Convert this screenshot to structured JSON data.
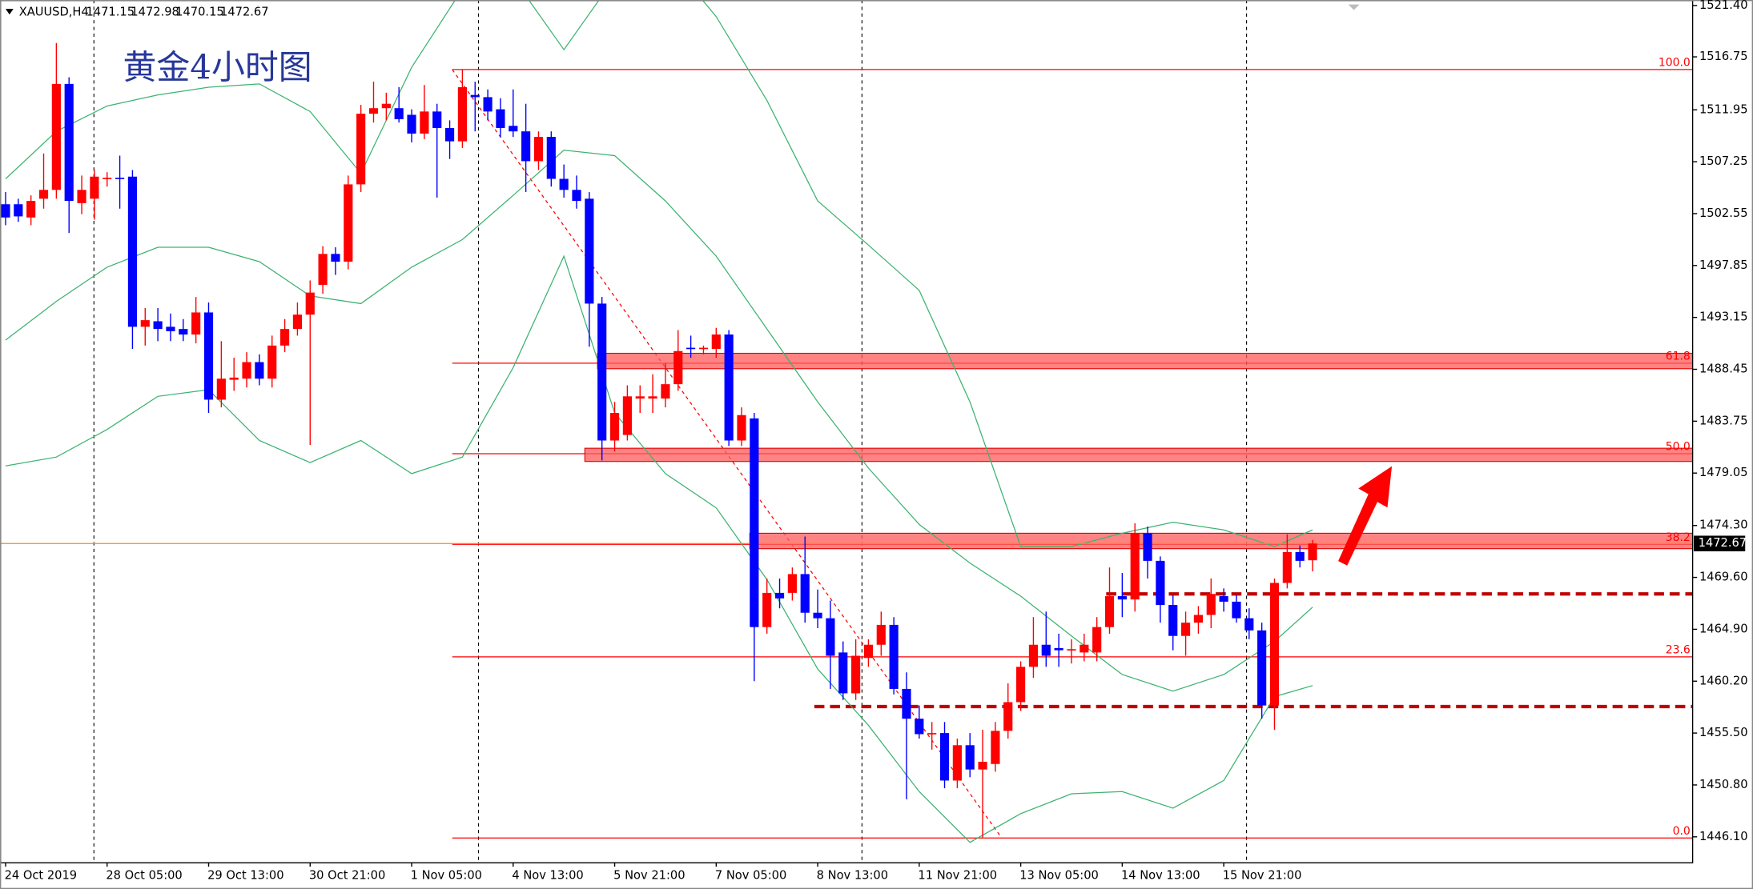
{
  "chart_data": {
    "type": "candlestick",
    "symbol": "XAUUSD,H4",
    "annotation": "黄金4小时图",
    "up_color": "#ff0000",
    "down_color": "#0000ff",
    "categories": [
      "24 Oct 2019",
      null,
      null,
      null,
      null,
      null,
      null,
      null,
      "28 Oct 05:00",
      null,
      null,
      null,
      null,
      null,
      null,
      null,
      "29 Oct 13:00",
      null,
      null,
      null,
      null,
      null,
      null,
      null,
      "30 Oct 21:00",
      null,
      null,
      null,
      null,
      null,
      null,
      null,
      "1 Nov 05:00",
      null,
      null,
      null,
      null,
      null,
      null,
      null,
      "4 Nov 13:00",
      null,
      null,
      null,
      null,
      null,
      null,
      null,
      "5 Nov 21:00",
      null,
      null,
      null,
      null,
      null,
      null,
      null,
      "7 Nov 05:00",
      null,
      null,
      null,
      null,
      null,
      null,
      null,
      "8 Nov 13:00",
      null,
      null,
      null,
      null,
      null,
      null,
      null,
      "11 Nov 21:00",
      null,
      null,
      null,
      null,
      null,
      null,
      null,
      "13 Nov 05:00",
      null,
      null,
      null,
      null,
      null,
      null,
      null,
      "14 Nov 13:00",
      null,
      null,
      null,
      null,
      null,
      null,
      null,
      "15 Nov 21:00",
      null,
      null,
      null,
      null,
      null,
      null,
      null
    ],
    "open": [
      1503.4,
      1503.4,
      1502.2,
      1503.9,
      1504.7,
      1514.3,
      1503.5,
      1503.9,
      1505.7,
      1505.8,
      1505.9,
      1492.3,
      1492.8,
      1492.3,
      1492.1,
      1491.6,
      1493.6,
      1485.7,
      1487.5,
      1487.6,
      1489.1,
      1487.6,
      1490.6,
      1492.1,
      1493.4,
      1496.1,
      1498.9,
      1498.2,
      1505.2,
      1511.6,
      1512.1,
      1512.1,
      1511.5,
      1509.8,
      1511.8,
      1510.3,
      1509.1,
      1513.3,
      1513.1,
      1512.0,
      1510.5,
      1510.0,
      1507.3,
      1509.5,
      1505.7,
      1504.7,
      1503.9,
      1494.4,
      1482.0,
      1482.5,
      1485.8,
      1485.8,
      1485.8,
      1487.1,
      1490.4,
      1490.3,
      1490.3,
      1491.6,
      1482.0,
      1484.0,
      1465.1,
      1468.2,
      1468.2,
      1469.9,
      1466.4,
      1465.9,
      1462.8,
      1459.1,
      1462.3,
      1463.5,
      1465.3,
      1459.5,
      1456.8,
      1455.4,
      1455.5,
      1451.2,
      1454.4,
      1452.2,
      1452.7,
      1455.7,
      1458.3,
      1461.5,
      1463.5,
      1463.2,
      1463.0,
      1462.8,
      1462.8,
      1465.1,
      1467.9,
      1467.6,
      1473.6,
      1471.1,
      1467.1,
      1464.3,
      1465.5,
      1466.2,
      1467.9,
      1467.4,
      1465.9,
      1464.8,
      1458.0,
      1469.1,
      1471.9,
      1471.15
    ],
    "high": [
      1504.5,
      1503.9,
      1504.2,
      1508.0,
      1518.0,
      1514.9,
      1506.0,
      1506.5,
      1506.3,
      1507.8,
      1506.5,
      1494.0,
      1494.0,
      1493.5,
      1493.0,
      1495.0,
      1494.5,
      1491.0,
      1489.5,
      1490.0,
      1489.8,
      1491.5,
      1493.0,
      1494.5,
      1496.5,
      1499.6,
      1499.5,
      1506.0,
      1512.4,
      1514.5,
      1513.5,
      1514.0,
      1512.0,
      1514.2,
      1512.5,
      1511.0,
      1515.6,
      1514.5,
      1513.8,
      1513.0,
      1513.8,
      1512.5,
      1510.0,
      1510.0,
      1507.0,
      1506.0,
      1504.5,
      1495.0,
      1485.5,
      1487.0,
      1487.0,
      1488.0,
      1489.0,
      1492.0,
      1491.5,
      1490.6,
      1492.2,
      1492.0,
      1485.0,
      1484.5,
      1469.5,
      1469.5,
      1470.5,
      1473.3,
      1468.5,
      1467.5,
      1463.8,
      1464.0,
      1464.0,
      1466.5,
      1466.0,
      1461.0,
      1458.0,
      1456.5,
      1456.5,
      1455.0,
      1455.5,
      1455.8,
      1456.5,
      1460.0,
      1462.0,
      1466.0,
      1466.5,
      1464.5,
      1464.0,
      1464.5,
      1466.0,
      1470.5,
      1470.0,
      1474.5,
      1474.2,
      1471.5,
      1468.0,
      1466.5,
      1467.0,
      1469.5,
      1468.6,
      1468.0,
      1466.8,
      1465.5,
      1469.5,
      1473.5,
      1472.5,
      1472.98
    ],
    "low": [
      1501.5,
      1501.8,
      1501.5,
      1503.0,
      1503.9,
      1500.8,
      1502.5,
      1502.0,
      1505.0,
      1503.0,
      1490.3,
      1490.6,
      1491.0,
      1491.0,
      1491.0,
      1490.8,
      1484.5,
      1485.0,
      1486.5,
      1486.8,
      1487.0,
      1486.8,
      1490.0,
      1491.5,
      1481.6,
      1495.3,
      1497.0,
      1497.5,
      1504.5,
      1510.8,
      1511.0,
      1510.8,
      1509.0,
      1509.3,
      1504.0,
      1507.5,
      1508.5,
      1510.0,
      1511.0,
      1509.5,
      1509.5,
      1504.5,
      1506.5,
      1505.0,
      1504.0,
      1503.0,
      1490.5,
      1480.2,
      1481.0,
      1482.0,
      1484.5,
      1484.5,
      1485.0,
      1486.5,
      1489.5,
      1489.8,
      1489.5,
      1481.5,
      1481.5,
      1460.2,
      1464.5,
      1466.8,
      1467.5,
      1465.5,
      1465.0,
      1459.5,
      1458.5,
      1458.5,
      1461.5,
      1462.5,
      1459.0,
      1449.5,
      1455.0,
      1454.0,
      1450.5,
      1450.5,
      1451.5,
      1446.0,
      1452.0,
      1455.0,
      1457.5,
      1460.5,
      1461.5,
      1461.5,
      1461.8,
      1462.0,
      1462.0,
      1464.5,
      1466.0,
      1466.5,
      1469.5,
      1465.5,
      1463.0,
      1462.5,
      1464.5,
      1465.0,
      1466.5,
      1465.5,
      1464.0,
      1456.8,
      1455.8,
      1468.6,
      1470.5,
      1470.15
    ],
    "close": [
      1502.2,
      1502.3,
      1503.7,
      1504.7,
      1514.3,
      1503.7,
      1504.7,
      1505.9,
      1505.8,
      1505.7,
      1492.3,
      1492.9,
      1492.1,
      1491.9,
      1491.6,
      1493.6,
      1485.7,
      1487.6,
      1487.7,
      1489.1,
      1487.6,
      1490.6,
      1492.1,
      1493.4,
      1495.4,
      1498.9,
      1498.2,
      1505.2,
      1511.6,
      1512.1,
      1512.5,
      1511.1,
      1509.8,
      1511.8,
      1510.3,
      1509.1,
      1514.0,
      1513.1,
      1511.8,
      1510.3,
      1510.0,
      1507.3,
      1509.5,
      1505.7,
      1504.7,
      1503.7,
      1494.4,
      1482.0,
      1484.5,
      1486.0,
      1486.0,
      1486.0,
      1487.1,
      1490.1,
      1490.3,
      1490.4,
      1491.6,
      1482.0,
      1484.3,
      1465.1,
      1468.2,
      1467.7,
      1469.9,
      1466.4,
      1465.9,
      1462.5,
      1459.1,
      1462.5,
      1463.5,
      1465.3,
      1459.5,
      1456.8,
      1455.4,
      1455.5,
      1451.2,
      1454.4,
      1452.2,
      1452.9,
      1455.7,
      1458.3,
      1461.5,
      1463.5,
      1462.5,
      1463.0,
      1463.1,
      1463.5,
      1465.1,
      1467.9,
      1467.6,
      1473.6,
      1471.1,
      1467.1,
      1464.3,
      1465.5,
      1466.2,
      1468.1,
      1467.4,
      1465.9,
      1464.8,
      1458.0,
      1469.1,
      1471.9,
      1471.1,
      1472.67
    ],
    "ylim": [
      1443.8,
      1521.9
    ],
    "yticks": [
      {
        "value": 1521.4,
        "label": "1521.40"
      },
      1516.75,
      1511.95,
      1507.25,
      1502.55,
      1497.85,
      1493.15,
      1488.45,
      1483.75,
      1479.05,
      {
        "value": 1474.3,
        "label": "1474.30"
      },
      {
        "value": 1469.6,
        "label": "1469.60"
      },
      {
        "value": 1464.9,
        "label": "1464.90"
      },
      {
        "value": 1460.2,
        "label": "1460.20"
      },
      {
        "value": 1455.5,
        "label": "1455.50"
      },
      {
        "value": 1450.8,
        "label": "1450.80"
      },
      {
        "value": 1446.1,
        "label": "1446.10"
      }
    ],
    "bollinger": {
      "color": "#3cb371",
      "x": [
        0,
        4,
        8,
        12,
        16,
        20,
        24,
        28,
        32,
        36,
        40,
        44,
        48,
        52,
        56,
        60,
        64,
        68,
        72,
        76,
        80,
        84,
        88,
        92,
        96,
        100,
        103
      ],
      "upper": [
        1505.7,
        1510.0,
        1512.3,
        1513.3,
        1514.0,
        1514.3,
        1511.8,
        1506.2,
        1515.8,
        1522.9,
        1523.9,
        1517.4,
        1523.9,
        1525.9,
        1520.4,
        1512.8,
        1503.7,
        1499.7,
        1495.6,
        1485.5,
        1472.4,
        1472.4,
        1473.6,
        1474.6,
        1473.9,
        1472.4,
        1473.9
      ],
      "middle": [
        1491.1,
        1494.6,
        1497.7,
        1499.5,
        1499.5,
        1498.2,
        1495.1,
        1494.4,
        1497.7,
        1500.2,
        1504.2,
        1508.3,
        1507.8,
        1503.7,
        1498.7,
        1492.1,
        1485.5,
        1479.5,
        1474.4,
        1470.9,
        1467.9,
        1464.3,
        1460.8,
        1459.3,
        1460.8,
        1463.8,
        1466.9
      ],
      "lower": [
        1479.7,
        1480.5,
        1483.0,
        1486.0,
        1486.6,
        1482.0,
        1480.0,
        1482.0,
        1479.0,
        1480.5,
        1488.6,
        1498.7,
        1484.5,
        1479.0,
        1475.9,
        1469.4,
        1461.3,
        1456.2,
        1450.2,
        1445.6,
        1448.2,
        1450.0,
        1450.2,
        1448.7,
        1451.2,
        1458.8,
        1459.8
      ]
    },
    "fibonacci": {
      "color": "#ff0000",
      "levels": [
        {
          "label": "100.0",
          "price": 1515.6
        },
        {
          "label": "61.8",
          "price": 1489.0
        },
        {
          "label": "50.0",
          "price": 1480.8
        },
        {
          "label": "38.2",
          "price": 1472.6
        },
        {
          "label": "23.6",
          "price": 1462.4
        },
        {
          "label": "0.0",
          "price": 1446.0
        }
      ]
    },
    "zones": [
      {
        "low": 1488.5,
        "high": 1489.9
      },
      {
        "low": 1480.1,
        "high": 1481.3
      },
      {
        "low": 1472.2,
        "high": 1473.6
      }
    ],
    "zone_color": "#ff5a5a",
    "dashed_levels": [
      1468.1,
      1457.9
    ],
    "dashed_color": "#c00000",
    "price_line_color": "#ff8c00"
  }
}
